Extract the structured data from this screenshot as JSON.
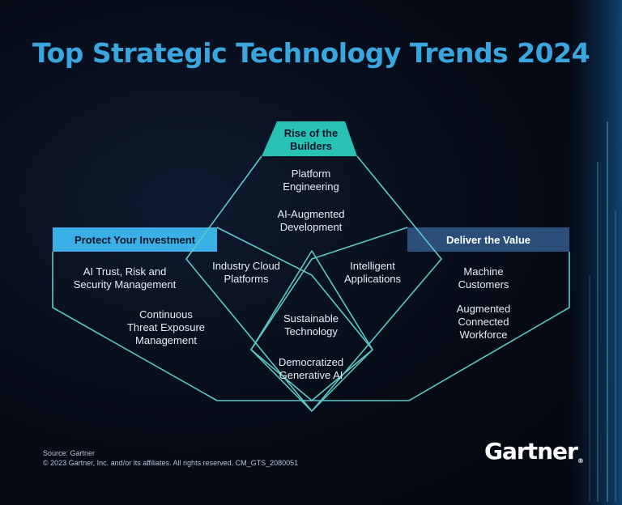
{
  "title": "Top Strategic Technology Trends 2024",
  "colors": {
    "title": "#3aa6e0",
    "teal": "#27c2b4",
    "lightblue": "#3bb0e6",
    "navy": "#2b4e7a",
    "outline": "#5fc8c8"
  },
  "themes": {
    "builders": "Rise of the\nBuilders",
    "protect": "Protect Your Investment",
    "deliver": "Deliver the Value"
  },
  "trends": {
    "platform_engineering": "Platform\nEngineering",
    "ai_augmented_dev": "AI-Augmented\nDevelopment",
    "industry_cloud": "Industry Cloud\nPlatforms",
    "intelligent_apps": "Intelligent\nApplications",
    "ai_trism": "AI Trust, Risk and\nSecurity Management",
    "ctem": "Continuous\nThreat Exposure\nManagement",
    "sustainable_tech": "Sustainable\nTechnology",
    "democratized_genai": "Democratized\nGenerative AI",
    "machine_customers": "Machine\nCustomers",
    "augmented_workforce": "Augmented\nConnected\nWorkforce"
  },
  "footer": {
    "source": "Source: Gartner",
    "copyright": "© 2023 Gartner, Inc. and/or its affiliates. All rights reserved. CM_GTS_2080051"
  },
  "logo": {
    "text": "Gartner",
    "mark": "®"
  }
}
